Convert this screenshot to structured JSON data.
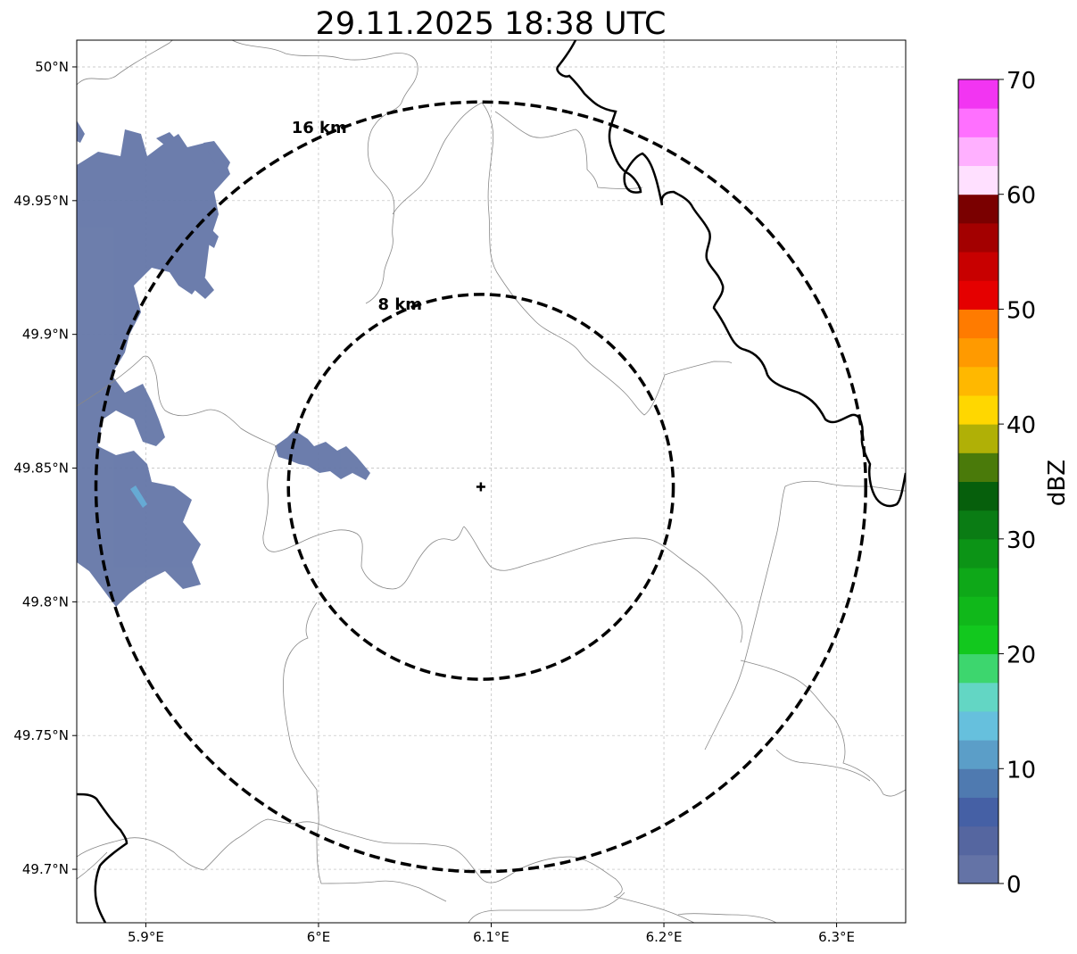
{
  "title": "29.11.2025 18:38 UTC",
  "map": {
    "lon_range": [
      5.86,
      6.34
    ],
    "lat_range": [
      49.68,
      50.01
    ],
    "x_ticks": [
      {
        "value": 5.9,
        "label": "5.9°E"
      },
      {
        "value": 6.0,
        "label": "6°E"
      },
      {
        "value": 6.1,
        "label": "6.1°E"
      },
      {
        "value": 6.2,
        "label": "6.2°E"
      },
      {
        "value": 6.3,
        "label": "6.3°E"
      }
    ],
    "y_ticks": [
      {
        "value": 50.0,
        "label": "50°N"
      },
      {
        "value": 49.95,
        "label": "49.95°N"
      },
      {
        "value": 49.9,
        "label": "49.9°N"
      },
      {
        "value": 49.85,
        "label": "49.85°N"
      },
      {
        "value": 49.8,
        "label": "49.8°N"
      },
      {
        "value": 49.75,
        "label": "49.75°N"
      },
      {
        "value": 49.7,
        "label": "49.7°N"
      }
    ],
    "grid": true,
    "radar_site": {
      "lon": 6.094,
      "lat": 49.843
    },
    "rings": [
      {
        "label": "16 km",
        "radius_km": 16
      },
      {
        "label": "8 km",
        "radius_km": 8
      }
    ]
  },
  "colorbar": {
    "label": "dBZ",
    "min": 0,
    "max": 70,
    "step": 2.5,
    "ticks": [
      "0",
      "10",
      "20",
      "30",
      "40",
      "50",
      "60",
      "70"
    ],
    "colors": [
      "#6473a6",
      "#5566a0",
      "#4560a5",
      "#4f7ab0",
      "#5b9ec8",
      "#66c0dd",
      "#63d6c4",
      "#3dd66e",
      "#12c81e",
      "#10b81a",
      "#0ea818",
      "#0c9416",
      "#0a7c14",
      "#065f0c",
      "#4a7a0a",
      "#b0b006",
      "#ffd700",
      "#ffb800",
      "#ff9a00",
      "#ff7b00",
      "#e50000",
      "#c80000",
      "#a30000",
      "#7a0000",
      "#ffe0ff",
      "#ffb0ff",
      "#ff70ff",
      "#f235f2"
    ]
  }
}
